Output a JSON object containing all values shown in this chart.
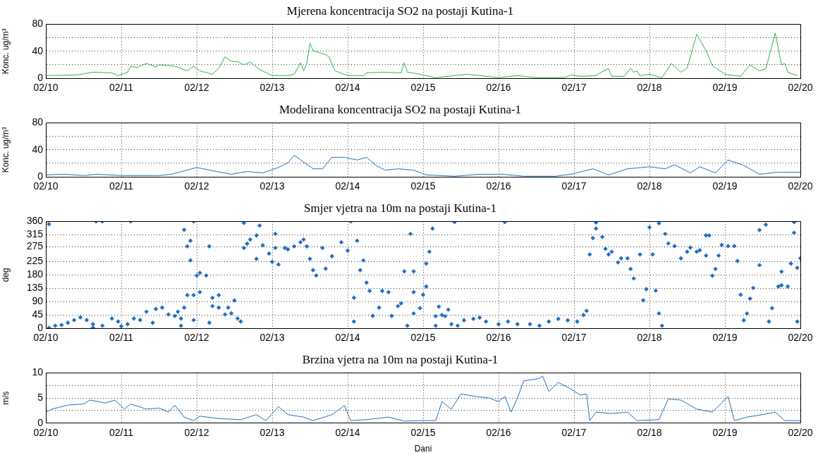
{
  "chart_data": [
    {
      "type": "line",
      "title": "Mjerena koncentracija SO2 na postaji Kutina-1",
      "ylabel": "Konc. ug/m³",
      "marker": "none",
      "grid": true,
      "xlim": [
        "--02-10",
        "--02-20"
      ],
      "xticks": [
        {
          "value": "--02-10",
          "label": "02/10"
        },
        {
          "value": "--02-11",
          "label": "02/11"
        },
        {
          "value": "--02-12",
          "label": "02/12"
        },
        {
          "value": "--02-13",
          "label": "02/13"
        },
        {
          "value": "--02-14",
          "label": "02/14"
        },
        {
          "value": "--02-15",
          "label": "02/15"
        },
        {
          "value": "--02-16",
          "label": "02/16"
        },
        {
          "value": "--02-17",
          "label": "02/17"
        },
        {
          "value": "--02-18",
          "label": "02/18"
        },
        {
          "value": "--02-19",
          "label": "02/19"
        },
        {
          "value": "--02-20",
          "label": "02/20"
        }
      ],
      "ylim": [
        0,
        80
      ],
      "yticks": [
        0,
        {
          "value": 20,
          "label": null
        },
        40,
        {
          "value": 60,
          "label": null
        },
        80
      ],
      "series": [
        {
          "color": "#2fb04f",
          "x": [
            "--02-10T00:00",
            "--02-10T10:00",
            "--02-10T15:00",
            "--02-10T21:00",
            "--02-10T23:00",
            "--02-11T02:00",
            "--02-11T03:00",
            "--02-11T05:00",
            "--02-11T08:00",
            "--02-11T11:00",
            "--02-11T12:00",
            "--02-11T17:00",
            "--02-11T21:00",
            "--02-11T23:00",
            "--02-12T01:00",
            "--02-12T05:00",
            "--02-12T07:00",
            "--02-12T09:00",
            "--02-12T11:00",
            "--02-12T13:00",
            "--02-12T15:00",
            "--02-12T17:00",
            "--02-12T20:00",
            "--02-13T00:00",
            "--02-13T05:00",
            "--02-13T07:00",
            "--02-13T09:00",
            "--02-13T10:00",
            "--02-13T11:00",
            "--02-13T12:00",
            "--02-13T13:00",
            "--02-13T17:00",
            "--02-13T18:00",
            "--02-13T20:00",
            "--02-14T00:00",
            "--02-14T05:00",
            "--02-14T06:00",
            "--02-14T11:00",
            "--02-14T17:00",
            "--02-14T18:00",
            "--02-14T19:00",
            "--02-14T23:00",
            "--02-15T04:00",
            "--02-15T10:00",
            "--02-15T14:00",
            "--02-15T20:00",
            "--02-16T00:00",
            "--02-16T06:00",
            "--02-16T12:00",
            "--02-16T21:00",
            "--02-16T23:00",
            "--02-17T02:00",
            "--02-17T07:00",
            "--02-17T09:00",
            "--02-17T11:00",
            "--02-17T12:00",
            "--02-17T16:00",
            "--02-17T18:00",
            "--02-17T19:00",
            "--02-17T20:00",
            "--02-17T21:00",
            "--02-18T00:00",
            "--02-18T04:00",
            "--02-18T07:00",
            "--02-18T10:00",
            "--02-18T12:00",
            "--02-18T15:00",
            "--02-18T18:00",
            "--02-18T20:00",
            "--02-19T00:00",
            "--02-19T05:00",
            "--02-19T08:00",
            "--02-19T11:00",
            "--02-19T13:00",
            "--02-19T16:00",
            "--02-19T18:00",
            "--02-19T19:00",
            "--02-19T20:00",
            "--02-19T23:00"
          ],
          "values": [
            4,
            5,
            9,
            8,
            4,
            9,
            18,
            16,
            22,
            17,
            20,
            18,
            11,
            18,
            11,
            6,
            15,
            32,
            25,
            25,
            20,
            24,
            13,
            4,
            4,
            6,
            23,
            11,
            22,
            52,
            41,
            35,
            32,
            11,
            4,
            4,
            8,
            9,
            8,
            23,
            9,
            6,
            1,
            4,
            6,
            3,
            1,
            4,
            1,
            1,
            5,
            3,
            4,
            10,
            14,
            3,
            3,
            15,
            9,
            11,
            4,
            6,
            1,
            22,
            9,
            15,
            65,
            41,
            19,
            6,
            3,
            20,
            11,
            14,
            67,
            20,
            22,
            9,
            4
          ]
        }
      ]
    },
    {
      "type": "line",
      "title": "Modelirana koncentracija SO2 na postaji Kutina-1",
      "ylabel": "Konc. ug/m³",
      "marker": "none",
      "grid": true,
      "xlim": [
        "--02-10",
        "--02-20"
      ],
      "xticks": [
        {
          "value": "--02-10",
          "label": "02/10"
        },
        {
          "value": "--02-11",
          "label": "02/11"
        },
        {
          "value": "--02-12",
          "label": "02/12"
        },
        {
          "value": "--02-13",
          "label": "02/13"
        },
        {
          "value": "--02-14",
          "label": "02/14"
        },
        {
          "value": "--02-15",
          "label": "02/15"
        },
        {
          "value": "--02-16",
          "label": "02/16"
        },
        {
          "value": "--02-17",
          "label": "02/17"
        },
        {
          "value": "--02-18",
          "label": "02/18"
        },
        {
          "value": "--02-19",
          "label": "02/19"
        },
        {
          "value": "--02-20",
          "label": "02/20"
        }
      ],
      "ylim": [
        0,
        80
      ],
      "yticks": [
        0,
        {
          "value": 20,
          "label": null
        },
        40,
        {
          "value": 60,
          "label": null
        },
        80
      ],
      "series": [
        {
          "color": "#1f6fc0",
          "x": [
            "--02-10T00:00",
            "--02-10T06:00",
            "--02-10T12:00",
            "--02-10T16:00",
            "--02-11T00:00",
            "--02-11T12:00",
            "--02-11T16:00",
            "--02-12T00:00",
            "--02-12T04:00",
            "--02-12T11:00",
            "--02-12T16:00",
            "--02-12T21:00",
            "--02-13T02:00",
            "--02-13T05:00",
            "--02-13T07:00",
            "--02-13T10:00",
            "--02-13T13:00",
            "--02-13T16:00",
            "--02-13T19:00",
            "--02-13T23:00",
            "--02-14T03:00",
            "--02-14T06:00",
            "--02-14T09:00",
            "--02-14T12:00",
            "--02-14T16:00",
            "--02-14T21:00",
            "--02-15T01:00",
            "--02-15T10:00",
            "--02-15T18:00",
            "--02-16T01:00",
            "--02-16T08:00",
            "--02-16T18:00",
            "--02-16T23:00",
            "--02-17T06:00",
            "--02-17T11:00",
            "--02-17T17:00",
            "--02-18T00:00",
            "--02-18T05:00",
            "--02-18T08:00",
            "--02-18T13:00",
            "--02-18T16:00",
            "--02-18T21:00",
            "--02-19T01:00",
            "--02-19T06:00",
            "--02-19T11:00",
            "--02-19T17:00",
            "--02-20T00:00"
          ],
          "values": [
            3,
            4,
            2,
            4,
            2,
            2,
            4,
            14,
            10,
            4,
            8,
            6,
            14,
            21,
            32,
            22,
            12,
            12,
            29,
            29,
            25,
            29,
            17,
            10,
            12,
            10,
            3,
            1,
            4,
            4,
            1,
            1,
            4,
            12,
            3,
            12,
            15,
            12,
            18,
            6,
            15,
            6,
            25,
            17,
            4,
            7,
            7
          ]
        }
      ]
    },
    {
      "type": "scatter",
      "title": "Smjer vjetra na 10m na postaji Kutina-1",
      "ylabel": "deg",
      "marker": "diamond",
      "grid": true,
      "xlim": [
        "--02-10",
        "--02-20"
      ],
      "xticks": [
        {
          "value": "--02-10",
          "label": "02/10"
        },
        {
          "value": "--02-11",
          "label": "02/11"
        },
        {
          "value": "--02-12",
          "label": "02/12"
        },
        {
          "value": "--02-13",
          "label": "02/13"
        },
        {
          "value": "--02-14",
          "label": "02/14"
        },
        {
          "value": "--02-15",
          "label": "02/15"
        },
        {
          "value": "--02-16",
          "label": "02/16"
        },
        {
          "value": "--02-17",
          "label": "02/17"
        },
        {
          "value": "--02-18",
          "label": "02/18"
        },
        {
          "value": "--02-19",
          "label": "02/19"
        },
        {
          "value": "--02-20",
          "label": "02/20"
        }
      ],
      "ylim": [
        0,
        360
      ],
      "yticks": [
        0,
        45,
        90,
        135,
        180,
        225,
        275,
        315,
        360
      ],
      "series": [
        {
          "color": "#1f6fc0",
          "x": [
            "--02-10T00:00",
            "--02-10T01:00",
            "--02-10T01:00",
            "--02-10T03:00",
            "--02-10T05:00",
            "--02-10T07:00",
            "--02-10T09:00",
            "--02-10T11:00",
            "--02-10T13:00",
            "--02-10T15:00",
            "--02-10T15:00",
            "--02-10T16:00",
            "--02-10T18:00",
            "--02-10T18:00",
            "--02-10T21:00",
            "--02-10T23:00",
            "--02-11T00:00",
            "--02-11T02:00",
            "--02-11T03:00",
            "--02-11T04:00",
            "--02-11T06:00",
            "--02-11T08:00",
            "--02-11T10:00",
            "--02-11T11:00",
            "--02-11T13:00",
            "--02-11T15:00",
            "--02-11T17:00",
            "--02-11T18:00",
            "--02-11T19:00",
            "--02-11T19:00",
            "--02-11T20:00",
            "--02-11T20:00",
            "--02-11T21:00",
            "--02-11T21:00",
            "--02-11T22:00",
            "--02-11T22:00",
            "--02-11T23:00",
            "--02-11T23:00",
            "--02-11T23:00",
            "--02-12T00:00",
            "--02-12T01:00",
            "--02-12T01:00",
            "--02-12T03:00",
            "--02-12T04:00",
            "--02-12T04:00",
            "--02-12T05:00",
            "--02-12T05:00",
            "--02-12T07:00",
            "--02-12T07:00",
            "--02-12T09:00",
            "--02-12T10:00",
            "--02-12T11:00",
            "--02-12T12:00",
            "--02-12T13:00",
            "--02-12T14:00",
            "--02-12T15:00",
            "--02-12T15:00",
            "--02-12T16:00",
            "--02-12T17:00",
            "--02-12T19:00",
            "--02-12T19:00",
            "--02-12T20:00",
            "--02-12T21:00",
            "--02-12T23:00",
            "--02-13T00:00",
            "--02-13T01:00",
            "--02-13T01:00",
            "--02-13T02:00",
            "--02-13T04:00",
            "--02-13T05:00",
            "--02-13T07:00",
            "--02-13T09:00",
            "--02-13T10:00",
            "--02-13T11:00",
            "--02-13T12:00",
            "--02-13T13:00",
            "--02-13T14:00",
            "--02-13T16:00",
            "--02-13T17:00",
            "--02-13T19:00",
            "--02-13T22:00",
            "--02-14T00:00",
            "--02-14T01:00",
            "--02-14T02:00",
            "--02-14T02:00",
            "--02-14T03:00",
            "--02-14T04:00",
            "--02-14T05:00",
            "--02-14T06:00",
            "--02-14T07:00",
            "--02-14T08:00",
            "--02-14T10:00",
            "--02-14T11:00",
            "--02-14T13:00",
            "--02-14T14:00",
            "--02-14T16:00",
            "--02-14T17:00",
            "--02-14T18:00",
            "--02-14T19:00",
            "--02-14T20:00",
            "--02-14T21:00",
            "--02-14T21:00",
            "--02-14T21:00",
            "--02-14T23:00",
            "--02-15T00:00",
            "--02-15T01:00",
            "--02-15T01:00",
            "--02-15T02:00",
            "--02-15T03:00",
            "--02-15T04:00",
            "--02-15T04:00",
            "--02-15T05:00",
            "--02-15T06:00",
            "--02-15T07:00",
            "--02-15T08:00",
            "--02-15T09:00",
            "--02-15T10:00",
            "--02-15T11:00",
            "--02-15T13:00",
            "--02-15T16:00",
            "--02-15T18:00",
            "--02-15T20:00",
            "--02-16T00:00",
            "--02-16T02:00",
            "--02-16T03:00",
            "--02-16T06:00",
            "--02-16T10:00",
            "--02-16T13:00",
            "--02-16T16:00",
            "--02-16T19:00",
            "--02-16T22:00",
            "--02-17T01:00",
            "--02-17T03:00",
            "--02-17T04:00",
            "--02-17T05:00",
            "--02-17T06:00",
            "--02-17T07:00",
            "--02-17T07:00",
            "--02-17T09:00",
            "--02-17T10:00",
            "--02-17T11:00",
            "--02-17T12:00",
            "--02-17T14:00",
            "--02-17T15:00",
            "--02-17T17:00",
            "--02-17T18:00",
            "--02-17T19:00",
            "--02-17T21:00",
            "--02-17T22:00",
            "--02-17T23:00",
            "--02-18T00:00",
            "--02-18T01:00",
            "--02-18T02:00",
            "--02-18T03:00",
            "--02-18T03:00",
            "--02-18T04:00",
            "--02-18T05:00",
            "--02-18T06:00",
            "--02-18T08:00",
            "--02-18T10:00",
            "--02-18T12:00",
            "--02-18T13:00",
            "--02-18T15:00",
            "--02-18T16:00",
            "--02-18T18:00",
            "--02-18T18:00",
            "--02-18T19:00",
            "--02-18T20:00",
            "--02-18T21:00",
            "--02-18T22:00",
            "--02-18T23:00",
            "--02-19T01:00",
            "--02-19T03:00",
            "--02-19T04:00",
            "--02-19T05:00",
            "--02-19T06:00",
            "--02-19T07:00",
            "--02-19T08:00",
            "--02-19T09:00",
            "--02-19T11:00",
            "--02-19T11:00",
            "--02-19T13:00",
            "--02-19T14:00",
            "--02-19T15:00",
            "--02-19T17:00",
            "--02-19T18:00",
            "--02-19T18:00",
            "--02-19T20:00",
            "--02-19T21:00",
            "--02-19T22:00",
            "--02-19T22:00",
            "--02-19T23:00",
            "--02-19T23:00",
            "--02-20T00:00"
          ],
          "values": [
            360,
            351,
            2,
            9,
            11,
            19,
            28,
            37,
            28,
            14,
            2,
            360,
            360,
            9,
            33,
            23,
            7,
            14,
            360,
            33,
            28,
            56,
            19,
            65,
            70,
            47,
            42,
            56,
            9,
            33,
            70,
            332,
            112,
            276,
            295,
            229,
            28,
            360,
            112,
            178,
            187,
            122,
            178,
            19,
            276,
            75,
            103,
            112,
            70,
            47,
            70,
            51,
            94,
            33,
            23,
            355,
            271,
            285,
            299,
            234,
            313,
            346,
            280,
            252,
            224,
            271,
            318,
            215,
            271,
            266,
            276,
            290,
            299,
            276,
            234,
            196,
            178,
            271,
            201,
            243,
            290,
            262,
            360,
            103,
            23,
            295,
            196,
            229,
            154,
            126,
            42,
            70,
            126,
            122,
            42,
            75,
            84,
            192,
            9,
            318,
            192,
            122,
            50,
            68,
            113,
            141,
            218,
            258,
            336,
            9,
            41,
            73,
            45,
            41,
            63,
            14,
            358,
            9,
            27,
            32,
            36,
            23,
            14,
            358,
            23,
            14,
            14,
            9,
            23,
            32,
            27,
            23,
            45,
            59,
            249,
            304,
            336,
            356,
            308,
            268,
            249,
            258,
            222,
            236,
            236,
            200,
            168,
            249,
            95,
            132,
            340,
            249,
            127,
            50,
            354,
            9,
            318,
            286,
            277,
            236,
            258,
            272,
            258,
            263,
            313,
            245,
            313,
            177,
            200,
            245,
            281,
            277,
            277,
            227,
            113,
            27,
            50,
            100,
            136,
            213,
            331,
            349,
            23,
            68,
            141,
            191,
            145,
            141,
            218,
            322,
            358,
            23,
            204,
            236
          ]
        }
      ]
    },
    {
      "type": "line",
      "title": "Brzina vjetra na 10m na postaji Kutina-1",
      "ylabel": "m/s",
      "xlabel": "Dani",
      "marker": "none",
      "grid": true,
      "xlim": [
        "--02-10",
        "--02-20"
      ],
      "xticks": [
        {
          "value": "--02-10",
          "label": "02/10"
        },
        {
          "value": "--02-11",
          "label": "02/11"
        },
        {
          "value": "--02-12",
          "label": "02/12"
        },
        {
          "value": "--02-13",
          "label": "02/13"
        },
        {
          "value": "--02-14",
          "label": "02/14"
        },
        {
          "value": "--02-15",
          "label": "02/15"
        },
        {
          "value": "--02-16",
          "label": "02/16"
        },
        {
          "value": "--02-17",
          "label": "02/17"
        },
        {
          "value": "--02-18",
          "label": "02/18"
        },
        {
          "value": "--02-19",
          "label": "02/19"
        },
        {
          "value": "--02-20",
          "label": "02/20"
        }
      ],
      "ylim": [
        0,
        10
      ],
      "yticks": [
        0,
        {
          "value": 2.5,
          "label": null
        },
        5,
        {
          "value": 7.5,
          "label": null
        },
        10
      ],
      "series": [
        {
          "color": "#1f6fc0",
          "x": [
            "--02-10T00:00",
            "--02-10T02:00",
            "--02-10T07:00",
            "--02-10T12:00",
            "--02-10T14:00",
            "--02-10T19:00",
            "--02-10T22:00",
            "--02-11T01:00",
            "--02-11T03:00",
            "--02-11T08:00",
            "--02-11T12:00",
            "--02-11T15:00",
            "--02-11T17:00",
            "--02-11T20:00",
            "--02-11T23:00",
            "--02-12T01:00",
            "--02-12T07:00",
            "--02-12T14:00",
            "--02-12T19:00",
            "--02-12T22:00",
            "--02-13T02:00",
            "--02-13T05:00",
            "--02-13T10:00",
            "--02-13T13:00",
            "--02-13T19:00",
            "--02-13T23:00",
            "--02-14T01:00",
            "--02-14T06:00",
            "--02-14T13:00",
            "--02-14T18:00",
            "--02-14T23:00",
            "--02-15T04:00",
            "--02-15T06:00",
            "--02-15T09:00",
            "--02-15T12:00",
            "--02-15T17:00",
            "--02-15T21:00",
            "--02-16T00:00",
            "--02-16T02:00",
            "--02-16T04:00",
            "--02-16T06:00",
            "--02-16T08:00",
            "--02-16T13:00",
            "--02-16T14:00",
            "--02-16T16:00",
            "--02-16T19:00",
            "--02-16T23:00",
            "--02-17T02:00",
            "--02-17T04:00",
            "--02-17T05:00",
            "--02-17T07:00",
            "--02-17T12:00",
            "--02-17T17:00",
            "--02-17T20:00",
            "--02-18T03:00",
            "--02-18T06:00",
            "--02-18T10:00",
            "--02-18T15:00",
            "--02-18T20:00",
            "--02-19T01:00",
            "--02-19T03:00",
            "--02-19T07:00",
            "--02-19T12:00",
            "--02-19T16:00",
            "--02-19T19:00",
            "--02-20T00:00"
          ],
          "values": [
            2.2,
            2.8,
            3.6,
            3.8,
            4.6,
            4,
            4.6,
            2.8,
            3.8,
            2.8,
            3,
            2.2,
            3.6,
            1.2,
            0.5,
            1.4,
            0.9,
            0.7,
            1.7,
            0.5,
            3.3,
            1.7,
            1.2,
            0.5,
            1.7,
            3.5,
            0.5,
            0.7,
            1.2,
            0.4,
            0.5,
            0.5,
            4.3,
            2.8,
            5.8,
            5.3,
            5,
            4.3,
            5.3,
            2.2,
            5,
            8.4,
            8.9,
            9.4,
            6.3,
            8.1,
            6.8,
            5.6,
            5.8,
            0.5,
            2.2,
            1.9,
            2.2,
            0.5,
            0.7,
            4.8,
            4.6,
            2.8,
            2.2,
            5.3,
            0.5,
            1.2,
            1.7,
            2.2,
            0.5,
            0.5
          ]
        }
      ]
    }
  ]
}
